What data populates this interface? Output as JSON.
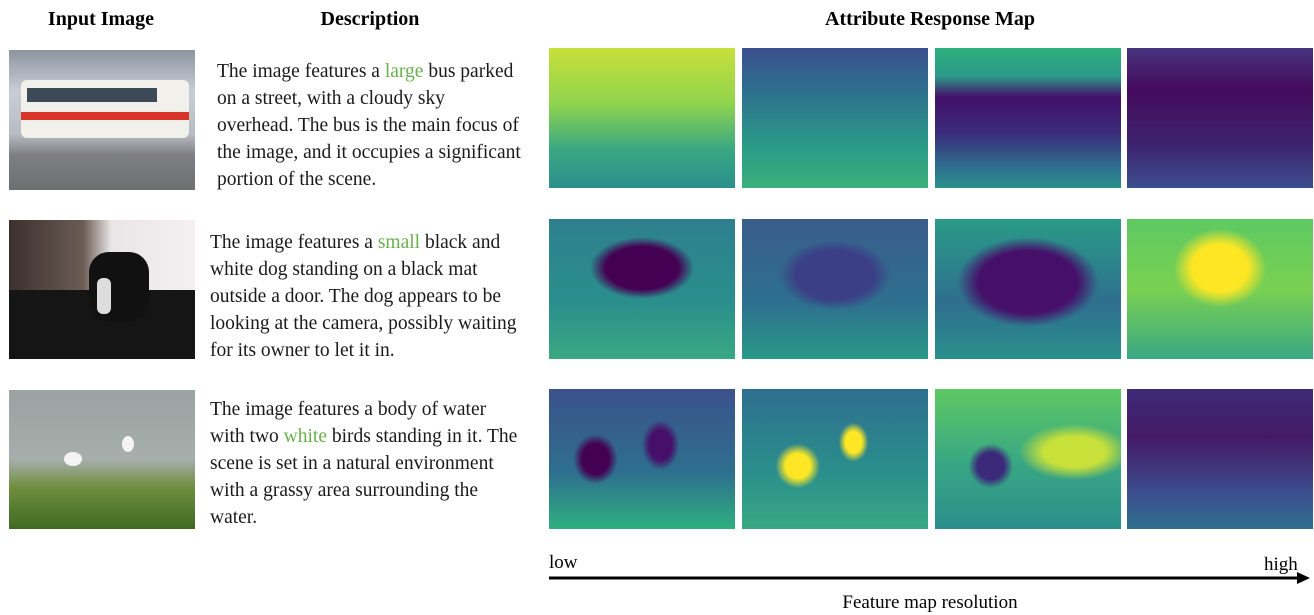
{
  "headers": {
    "input": "Input Image",
    "description": "Description",
    "map": "Attribute Response Map"
  },
  "rows": [
    {
      "description": [
        "The image features a",
        "large",
        "bus parked on a street, with a cloudy sky overhead. The bus is the main focus of the image, and it occupies a significant portion of the scene."
      ]
    },
    {
      "description": [
        "The image features a",
        "small",
        "black and white dog standing on a black mat outside a door. The dog appears to be looking at the camera, possibly waiting for its owner to let it in."
      ]
    },
    {
      "description": [
        "The image features a body of water with two",
        "white",
        "birds standing in it. The scene is set in a natural environment with a grassy area surrounding the water."
      ]
    }
  ],
  "axis": {
    "low": "low",
    "high": "high",
    "label": "Feature map resolution"
  }
}
